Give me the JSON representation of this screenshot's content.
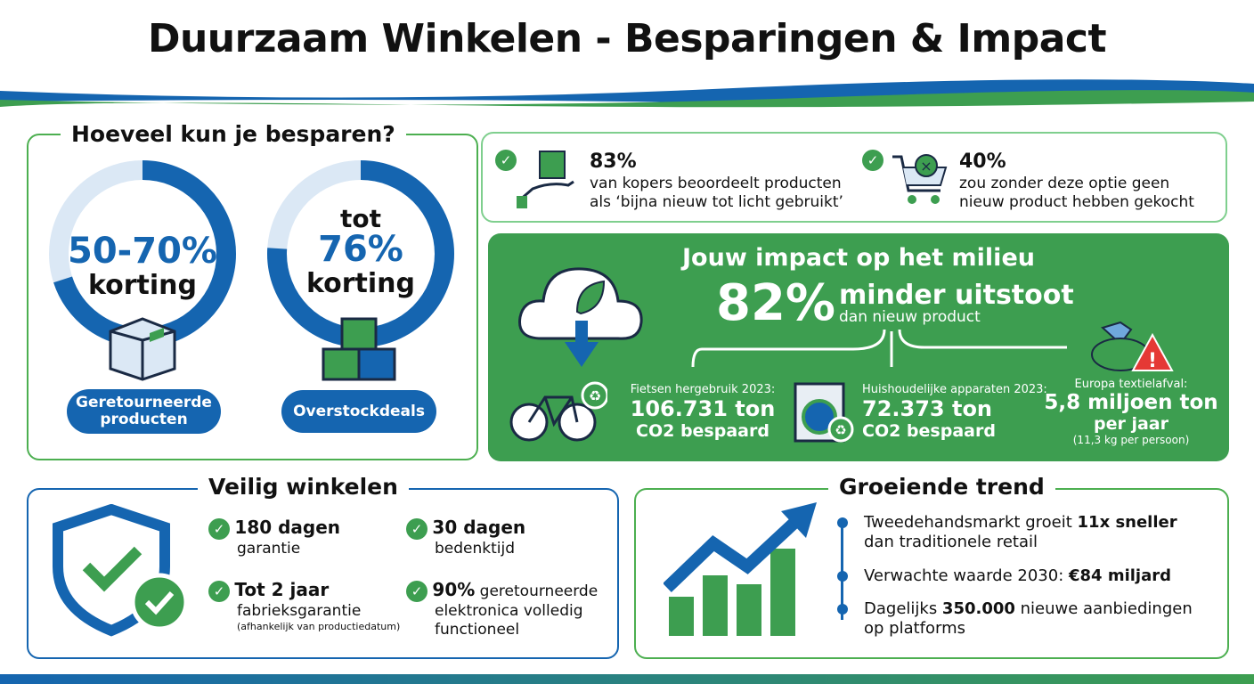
{
  "title": "Duurzaam Winkelen - Besparingen & Impact",
  "savings": {
    "heading": "Hoeveel kun je besparen?",
    "ring1": {
      "value": "50-70%",
      "label": "korting",
      "fill_percent": 70,
      "pill": "Geretourneerde producten"
    },
    "ring2": {
      "prefix": "tot",
      "value": "76%",
      "label": "korting",
      "fill_percent": 76,
      "pill": "Overstockdeals"
    }
  },
  "facts": [
    {
      "value": "83%",
      "text1": "van kopers beoordeelt producten",
      "text2": "als ‘bijna nieuw tot licht gebruikt’"
    },
    {
      "value": "40%",
      "text1": "zou zonder deze optie geen",
      "text2": "nieuw product hebben gekocht"
    }
  ],
  "impact": {
    "heading": "Jouw impact op het milieu",
    "value": "82%",
    "label": "minder uitstoot",
    "sub": "dan nieuw product",
    "items": [
      {
        "title": "Fietsen hergebruik 2023:",
        "value": "106.731 ton",
        "sub": "CO2 bespaard"
      },
      {
        "title": "Huishoudelijke apparaten 2023:",
        "value": "72.373 ton",
        "sub": "CO2 bespaard"
      },
      {
        "title": "Europa textielafval:",
        "value": "5,8 miljoen ton",
        "sub": "per jaar",
        "note": "(11,3 kg per persoon)"
      }
    ]
  },
  "safe": {
    "heading": "Veilig winkelen",
    "items": [
      {
        "bold": "180 dagen",
        "text": "garantie"
      },
      {
        "bold": "30 dagen",
        "text": "bedenktijd"
      },
      {
        "bold": "Tot 2 jaar",
        "text": "fabrieksgarantie",
        "note": "(afhankelijk van productiedatum)"
      },
      {
        "bold": "90%",
        "text": " geretourneerde",
        "text2": "elektronica volledig",
        "text3": "functioneel"
      }
    ]
  },
  "trend": {
    "heading": "Groeiende trend",
    "items": [
      {
        "pre": "Tweedehandsmarkt groeit ",
        "bold": "11x sneller",
        "line2": "dan traditionele retail"
      },
      {
        "pre": "Verwachte waarde 2030: ",
        "bold": "€84 miljard"
      },
      {
        "pre": "Dagelijks ",
        "bold": "350.000",
        "post": " nieuwe aanbiedingen",
        "line2": "op platforms"
      }
    ]
  },
  "colors": {
    "blue": "#1565b0",
    "green": "#3d9e50",
    "light_blue": "#dbe8f5"
  }
}
